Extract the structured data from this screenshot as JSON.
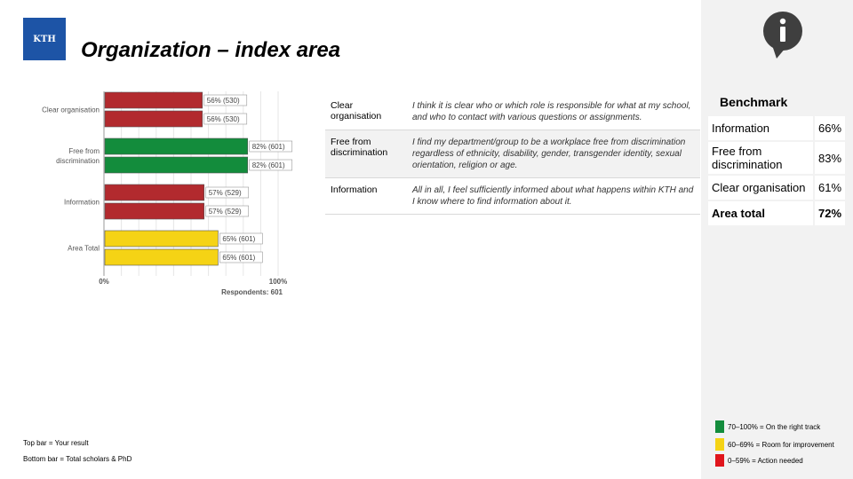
{
  "header": {
    "title": "Organization – index area",
    "logo_text": "KTH"
  },
  "chart_data": {
    "type": "bar",
    "orientation": "horizontal",
    "categories": [
      "Clear organisation",
      "Free from discrimination",
      "Information",
      "Area Total"
    ],
    "series": [
      {
        "name": "Top bar = Your result",
        "values": [
          56,
          82,
          57,
          65
        ],
        "counts": [
          "530",
          "601",
          "529",
          "601"
        ],
        "colors": [
          "#b22a2e",
          "#138c3c",
          "#b22a2e",
          "#f5d315"
        ]
      },
      {
        "name": "Bottom bar = Total scholars & PhD",
        "values": [
          56,
          82,
          57,
          65
        ],
        "counts": [
          "530",
          "601",
          "529",
          "601"
        ],
        "colors": [
          "#b22a2e",
          "#138c3c",
          "#b22a2e",
          "#f5d315"
        ]
      }
    ],
    "xlim": [
      0,
      100
    ],
    "x_tick_labels": [
      "0%",
      "100%"
    ],
    "respondents_label": "Respondents: 601",
    "grid": true
  },
  "questions": [
    {
      "name": "Clear organisation",
      "text": "I think it is clear who or which role is responsible for what at my school, and who to contact with various questions or assignments."
    },
    {
      "name": "Free from discrimination",
      "text": "I find my department/group to be a workplace free from discrimination regardless of ethnicity, disability, gender, transgender identity, sexual orientation, religion or age."
    },
    {
      "name": "Information",
      "text": "All in all, I feel sufficiently informed about what happens within KTH and I know where to find information about it."
    }
  ],
  "benchmark": {
    "title": "Benchmark",
    "rows": [
      {
        "name": "Information",
        "value": "66%"
      },
      {
        "name": "Free from discrimination",
        "value": "83%"
      },
      {
        "name": "Clear organisation",
        "value": "61%"
      }
    ],
    "total": {
      "name": "Area total",
      "value": "72%"
    }
  },
  "legend": [
    {
      "label": "70–100% = On the right track",
      "color": "#138c3c"
    },
    {
      "label": "60–69% = Room for improvement",
      "color": "#f5d315"
    },
    {
      "label": "0–59% = Action needed",
      "color": "#e0151c"
    }
  ],
  "notes": {
    "top": "Top bar = Your result",
    "bottom": "Bottom bar = Total scholars & PhD"
  },
  "icons": {
    "logo": "kth-logo",
    "info": "info-icon"
  }
}
